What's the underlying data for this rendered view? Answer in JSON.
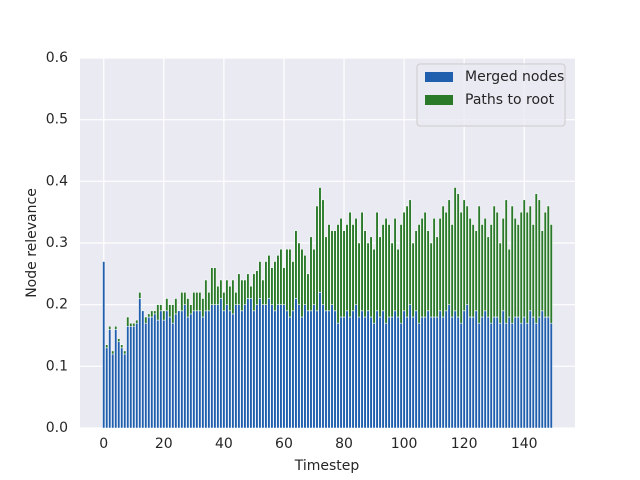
{
  "chart_data": {
    "type": "stacked-bar",
    "x_label": "Timestep",
    "y_label": "Node relevance",
    "x": [
      0,
      1,
      2,
      3,
      4,
      5,
      6,
      7,
      8,
      9,
      10,
      11,
      12,
      13,
      14,
      15,
      16,
      17,
      18,
      19,
      20,
      21,
      22,
      23,
      24,
      25,
      26,
      27,
      28,
      29,
      30,
      31,
      32,
      33,
      34,
      35,
      36,
      37,
      38,
      39,
      40,
      41,
      42,
      43,
      44,
      45,
      46,
      47,
      48,
      49,
      50,
      51,
      52,
      53,
      54,
      55,
      56,
      57,
      58,
      59,
      60,
      61,
      62,
      63,
      64,
      65,
      66,
      67,
      68,
      69,
      70,
      71,
      72,
      73,
      74,
      75,
      76,
      77,
      78,
      79,
      80,
      81,
      82,
      83,
      84,
      85,
      86,
      87,
      88,
      89,
      90,
      91,
      92,
      93,
      94,
      95,
      96,
      97,
      98,
      99,
      100,
      101,
      102,
      103,
      104,
      105,
      106,
      107,
      108,
      109,
      110,
      111,
      112,
      113,
      114,
      115,
      116,
      117,
      118,
      119,
      120,
      121,
      122,
      123,
      124,
      125,
      126,
      127,
      128,
      129,
      130,
      131,
      132,
      133,
      134,
      135,
      136,
      137,
      138,
      139,
      140,
      141,
      142,
      143,
      144,
      145,
      146,
      147,
      148,
      149
    ],
    "series": [
      {
        "name": "Merged nodes",
        "color": "#1f5fad",
        "values": [
          0.27,
          0.13,
          0.16,
          0.12,
          0.16,
          0.14,
          0.13,
          0.12,
          0.165,
          0.165,
          0.165,
          0.17,
          0.21,
          0.19,
          0.17,
          0.18,
          0.18,
          0.185,
          0.175,
          0.19,
          0.175,
          0.19,
          0.18,
          0.17,
          0.185,
          0.19,
          0.19,
          0.2,
          0.18,
          0.185,
          0.19,
          0.19,
          0.19,
          0.18,
          0.19,
          0.19,
          0.2,
          0.2,
          0.2,
          0.21,
          0.19,
          0.2,
          0.19,
          0.185,
          0.2,
          0.2,
          0.19,
          0.2,
          0.21,
          0.21,
          0.19,
          0.2,
          0.21,
          0.2,
          0.2,
          0.21,
          0.2,
          0.19,
          0.2,
          0.2,
          0.2,
          0.19,
          0.18,
          0.19,
          0.21,
          0.2,
          0.18,
          0.2,
          0.19,
          0.19,
          0.2,
          0.19,
          0.22,
          0.2,
          0.19,
          0.19,
          0.2,
          0.19,
          0.17,
          0.18,
          0.18,
          0.19,
          0.18,
          0.19,
          0.2,
          0.18,
          0.19,
          0.18,
          0.19,
          0.18,
          0.17,
          0.19,
          0.18,
          0.19,
          0.17,
          0.18,
          0.18,
          0.19,
          0.18,
          0.17,
          0.19,
          0.18,
          0.2,
          0.18,
          0.19,
          0.17,
          0.18,
          0.18,
          0.19,
          0.18,
          0.18,
          0.18,
          0.19,
          0.18,
          0.19,
          0.2,
          0.18,
          0.19,
          0.18,
          0.17,
          0.19,
          0.2,
          0.18,
          0.18,
          0.19,
          0.17,
          0.18,
          0.19,
          0.18,
          0.17,
          0.18,
          0.18,
          0.17,
          0.19,
          0.17,
          0.18,
          0.17,
          0.18,
          0.18,
          0.17,
          0.18,
          0.17,
          0.19,
          0.18,
          0.17,
          0.18,
          0.19,
          0.18,
          0.18,
          0.17
        ]
      },
      {
        "name": "Paths to root",
        "color": "#2a7a2a",
        "values": [
          0,
          0.005,
          0.005,
          0.005,
          0.005,
          0.005,
          0.005,
          0.005,
          0.015,
          0.005,
          0.005,
          0.005,
          0.01,
          0,
          0.01,
          0.005,
          0.01,
          0.005,
          0.025,
          0.01,
          0.015,
          0.02,
          0.02,
          0.03,
          0.025,
          0,
          0.03,
          0.02,
          0.03,
          0.015,
          0.03,
          0.03,
          0.03,
          0.03,
          0.05,
          0.03,
          0.06,
          0.06,
          0.03,
          0.03,
          0.03,
          0.04,
          0.04,
          0.055,
          0.02,
          0.05,
          0.05,
          0.04,
          0.04,
          0.02,
          0.06,
          0.055,
          0.06,
          0.04,
          0.07,
          0.07,
          0.06,
          0.08,
          0.08,
          0.09,
          0.06,
          0.1,
          0.11,
          0.08,
          0.11,
          0.1,
          0.11,
          0.08,
          0.06,
          0.12,
          0.09,
          0.17,
          0.17,
          0.17,
          0.12,
          0.14,
          0.12,
          0.13,
          0.16,
          0.16,
          0.14,
          0.14,
          0.17,
          0.14,
          0.14,
          0.12,
          0.16,
          0.14,
          0.11,
          0.13,
          0.12,
          0.16,
          0.13,
          0.14,
          0.17,
          0.15,
          0.12,
          0.15,
          0.11,
          0.16,
          0.16,
          0.18,
          0.17,
          0.12,
          0.13,
          0.16,
          0.16,
          0.17,
          0.13,
          0.12,
          0.16,
          0.13,
          0.15,
          0.18,
          0.16,
          0.17,
          0.15,
          0.2,
          0.2,
          0.18,
          0.18,
          0.16,
          0.16,
          0.15,
          0.13,
          0.19,
          0.15,
          0.15,
          0.13,
          0.16,
          0.18,
          0.17,
          0.13,
          0.15,
          0.2,
          0.11,
          0.19,
          0.16,
          0.15,
          0.18,
          0.19,
          0.18,
          0.17,
          0.15,
          0.21,
          0.19,
          0.13,
          0.17,
          0.18,
          0.16
        ]
      }
    ],
    "xlim": [
      -7.9,
      156.9
    ],
    "ylim": [
      0,
      0.6
    ],
    "xticks": [
      0,
      20,
      40,
      60,
      80,
      100,
      120,
      140
    ],
    "yticks": [
      {
        "value": 0,
        "label": "0.0"
      },
      0.1,
      0.2,
      0.3,
      0.4,
      0.5,
      0.6
    ],
    "grid": true,
    "legend": "upper-right"
  }
}
